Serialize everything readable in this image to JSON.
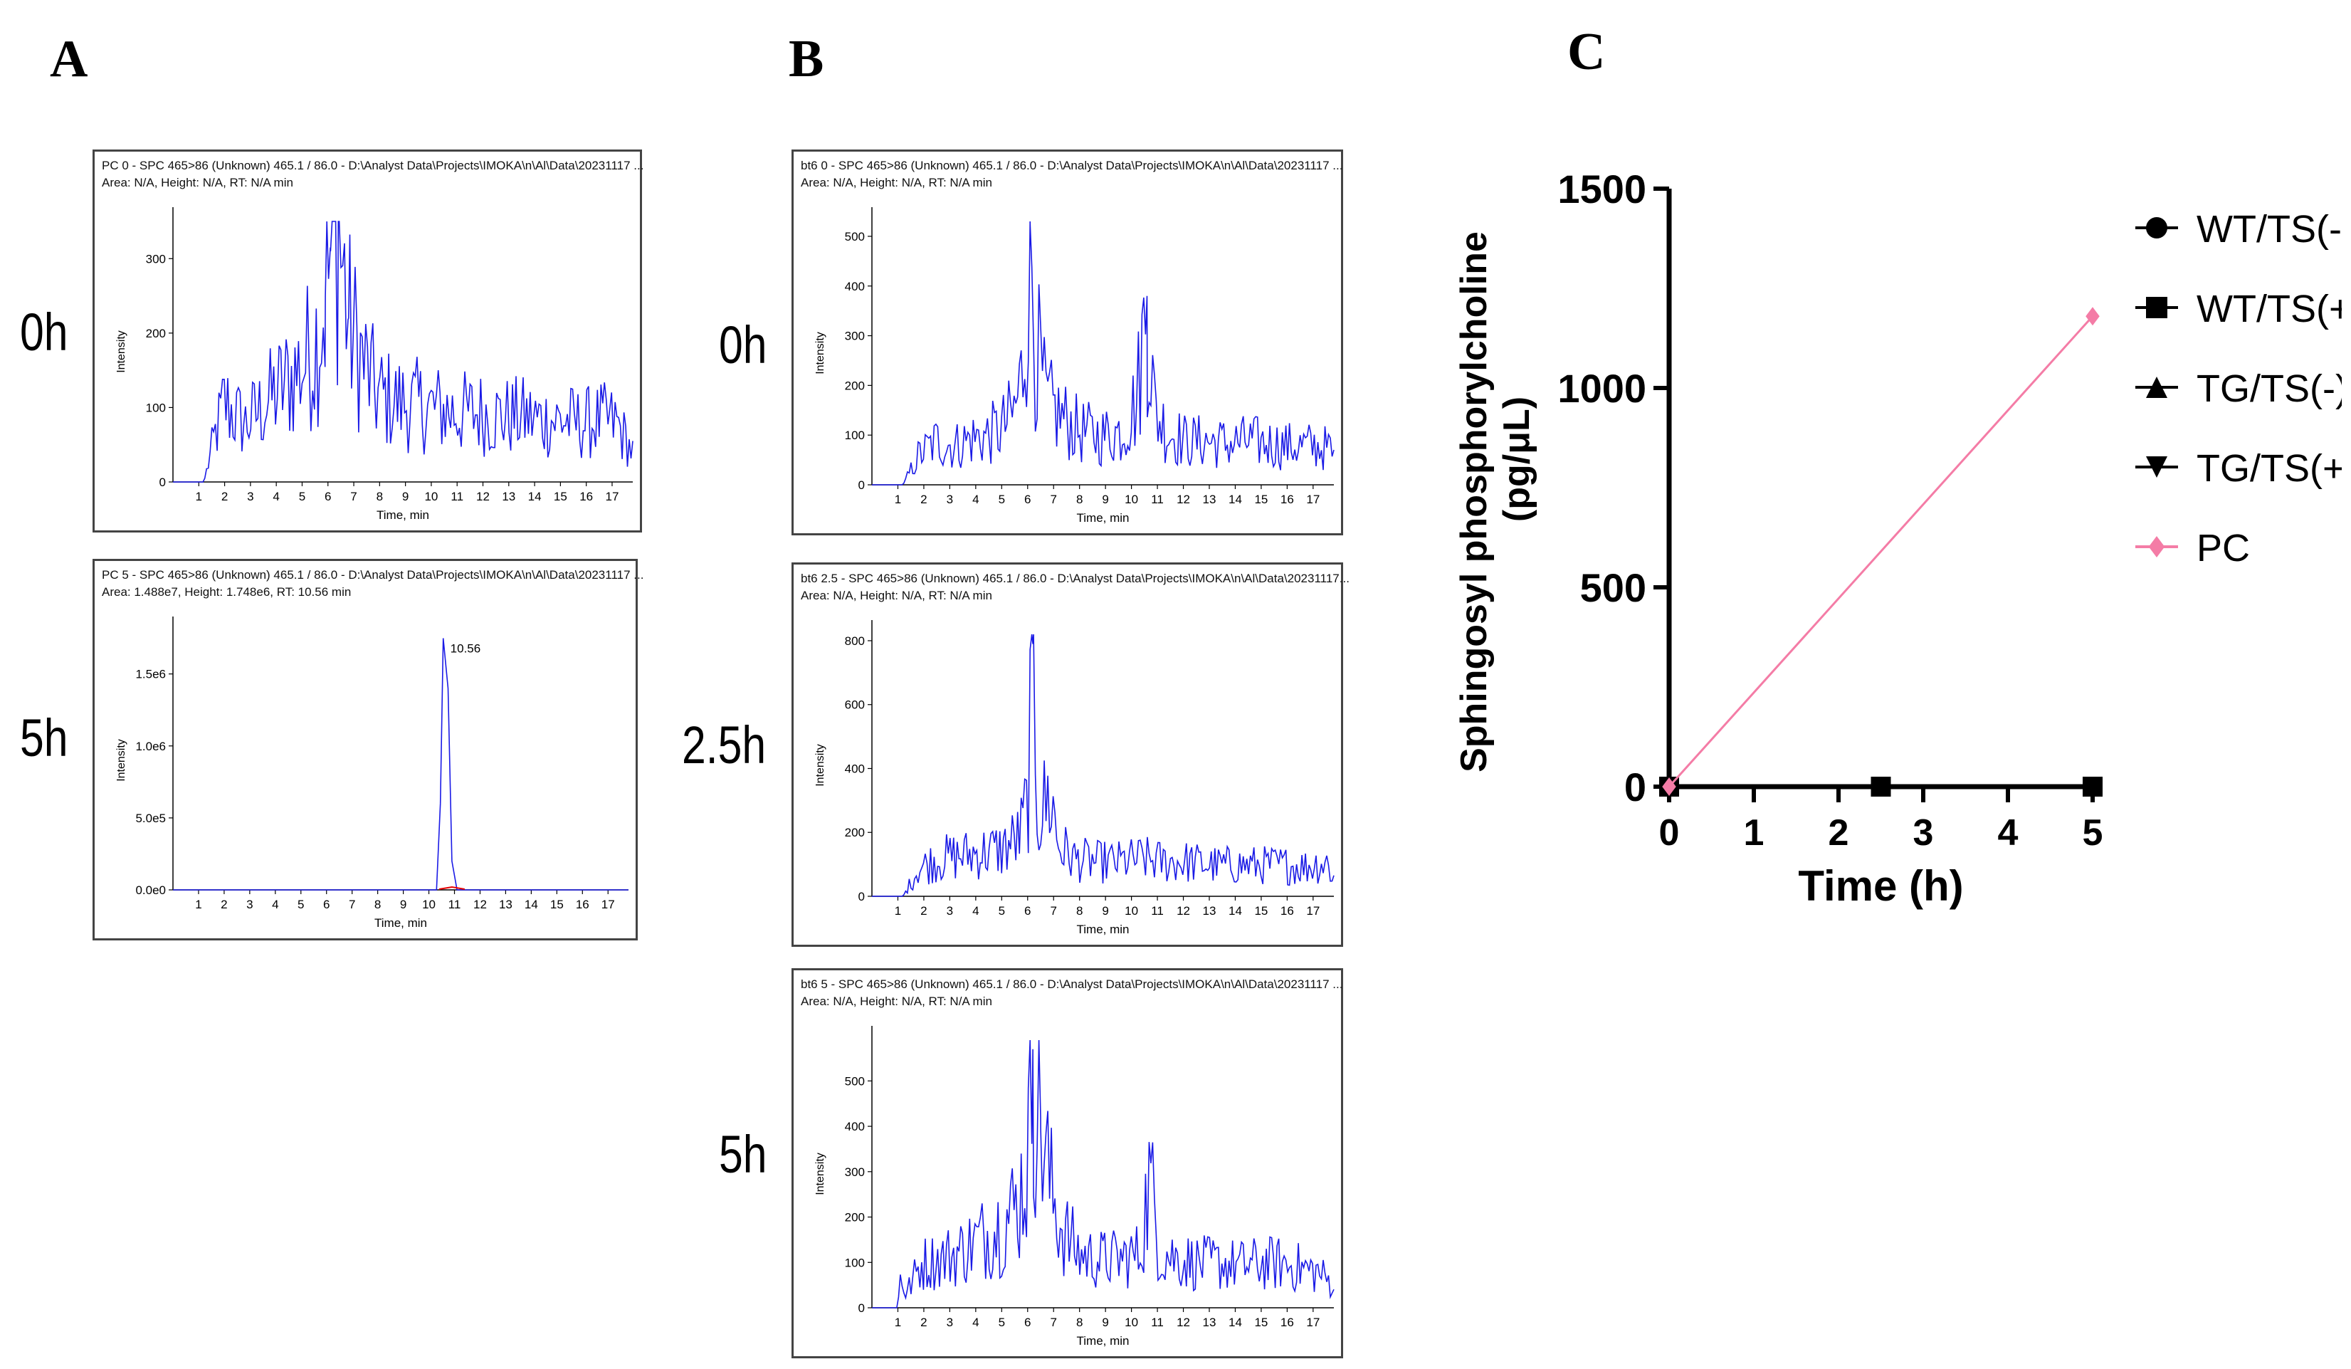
{
  "panels": {
    "A": {
      "letter": "A"
    },
    "B": {
      "letter": "B"
    },
    "C": {
      "letter": "C"
    }
  },
  "colors": {
    "trace": "#1a1ae6",
    "pc": "#f47ca6",
    "axis": "#000000",
    "fit": "#e60000"
  },
  "chromatograms": [
    {
      "id": "A0",
      "time_label": "0h",
      "header": [
        "PC 0 - SPC 465>86 (Unknown) 465.1 / 86.0 - D:\\Analyst Data\\Projects\\IMOKA\\n\\Al\\Data\\20231117 ...",
        "Area: N/A, Height: N/A, RT: N/A min"
      ],
      "y_label": "Intensity",
      "x_label": "Time, min",
      "y_ticks": [
        "0",
        "100",
        "200",
        "300"
      ],
      "y_max": 350,
      "x_ticks": [
        "1",
        "2",
        "3",
        "4",
        "5",
        "6",
        "7",
        "8",
        "9",
        "10",
        "11",
        "12",
        "13",
        "14",
        "15",
        "16",
        "17"
      ],
      "peak_label": ""
    },
    {
      "id": "A5",
      "time_label": "5h",
      "header": [
        "PC 5 - SPC 465>86 (Unknown) 465.1 / 86.0 - D:\\Analyst Data\\Projects\\IMOKA\\n\\Al\\Data\\20231117 ...",
        "Area: 1.488e7, Height: 1.748e6, RT: 10.56 min"
      ],
      "y_label": "Intensity",
      "x_label": "Time, min",
      "y_ticks": [
        "0.0e0",
        "5.0e5",
        "1.0e6",
        "1.5e6"
      ],
      "y_max": 1800000,
      "x_ticks": [
        "1",
        "2",
        "3",
        "4",
        "5",
        "6",
        "7",
        "8",
        "9",
        "10",
        "11",
        "12",
        "13",
        "14",
        "15",
        "16",
        "17"
      ],
      "peak_label": "10.56"
    },
    {
      "id": "B0",
      "time_label": "0h",
      "header": [
        "bt6 0 - SPC 465>86 (Unknown) 465.1 / 86.0 - D:\\Analyst Data\\Projects\\IMOKA\\n\\Al\\Data\\20231117 ...",
        "Area: N/A, Height: N/A, RT: N/A min"
      ],
      "y_label": "Intensity",
      "x_label": "Time, min",
      "y_ticks": [
        "0",
        "100",
        "200",
        "300",
        "400",
        "500"
      ],
      "y_max": 530,
      "x_ticks": [
        "1",
        "2",
        "3",
        "4",
        "5",
        "6",
        "7",
        "8",
        "9",
        "10",
        "11",
        "12",
        "13",
        "14",
        "15",
        "16",
        "17"
      ],
      "peak_label": ""
    },
    {
      "id": "B25",
      "time_label": "2.5h",
      "header": [
        "bt6 2.5 - SPC 465>86 (Unknown) 465.1 / 86.0 - D:\\Analyst Data\\Projects\\IMOKA\\n\\Al\\Data\\20231117...",
        "Area: N/A, Height: N/A, RT: N/A min"
      ],
      "y_label": "Intensity",
      "x_label": "Time, min",
      "y_ticks": [
        "0",
        "200",
        "400",
        "600",
        "800"
      ],
      "y_max": 820,
      "x_ticks": [
        "1",
        "2",
        "3",
        "4",
        "5",
        "6",
        "7",
        "8",
        "9",
        "10",
        "11",
        "12",
        "13",
        "14",
        "15",
        "16",
        "17"
      ],
      "peak_label": ""
    },
    {
      "id": "B5",
      "time_label": "5h",
      "header": [
        "bt6 5 - SPC 465>86 (Unknown) 465.1 / 86.0 - D:\\Analyst Data\\Projects\\IMOKA\\n\\Al\\Data\\20231117 ...",
        "Area: N/A, Height: N/A, RT: N/A min"
      ],
      "y_label": "Intensity",
      "x_label": "Time, min",
      "y_ticks": [
        "0",
        "100",
        "200",
        "300",
        "400",
        "500"
      ],
      "y_max": 590,
      "x_ticks": [
        "1",
        "2",
        "3",
        "4",
        "5",
        "6",
        "7",
        "8",
        "9",
        "10",
        "11",
        "12",
        "13",
        "14",
        "15",
        "16",
        "17"
      ],
      "peak_label": ""
    }
  ],
  "chart_data": [
    {
      "panel": "A",
      "label": "0h",
      "type": "line",
      "xlabel": "Time, min",
      "ylabel": "Intensity",
      "xlim": [
        0,
        17.8
      ],
      "ylim": [
        0,
        350
      ],
      "series": [
        {
          "x": [
            0.5,
            1.2,
            1.3,
            1.6,
            2.0,
            2.3,
            2.8,
            3.4,
            3.9,
            4.5,
            5.0,
            5.5,
            5.9,
            6.1,
            6.4,
            6.8,
            7.3,
            7.9,
            8.6,
            9.5,
            10.3,
            11.0,
            11.9,
            12.7,
            13.5,
            14.3,
            15.1,
            15.8,
            16.6,
            17.2,
            17.8
          ],
          "y": [
            0,
            0,
            15,
            60,
            110,
            95,
            80,
            100,
            120,
            140,
            160,
            190,
            250,
            310,
            350,
            220,
            170,
            120,
            110,
            105,
            100,
            95,
            95,
            90,
            90,
            85,
            85,
            80,
            85,
            80,
            40
          ]
        }
      ]
    },
    {
      "panel": "A",
      "label": "5h",
      "type": "line",
      "xlabel": "Time, min",
      "ylabel": "Intensity",
      "xlim": [
        0,
        17.8
      ],
      "ylim": [
        0,
        1800000
      ],
      "series": [
        {
          "x": [
            0,
            10.3,
            10.45,
            10.56,
            10.75,
            10.9,
            11.1,
            17.8
          ],
          "y": [
            0,
            0,
            600000,
            1748000,
            1400000,
            200000,
            0,
            0
          ]
        }
      ]
    },
    {
      "panel": "B",
      "label": "0h",
      "type": "line",
      "xlabel": "Time, min",
      "ylabel": "Intensity",
      "xlim": [
        0,
        17.8
      ],
      "ylim": [
        0,
        530
      ],
      "series": [
        {
          "x": [
            0.5,
            1.2,
            1.8,
            2.5,
            3.2,
            3.8,
            4.4,
            5.0,
            5.5,
            5.8,
            6.1,
            6.3,
            6.7,
            7.3,
            8.0,
            8.8,
            9.6,
            10.2,
            10.6,
            10.9,
            11.4,
            12.1,
            12.9,
            13.7,
            14.5,
            15.3,
            16.1,
            16.9,
            17.6,
            17.8
          ],
          "y": [
            0,
            0,
            60,
            90,
            80,
            95,
            100,
            115,
            150,
            230,
            520,
            300,
            170,
            140,
            110,
            100,
            110,
            170,
            380,
            150,
            110,
            90,
            90,
            85,
            90,
            85,
            80,
            80,
            75,
            55
          ]
        }
      ]
    },
    {
      "panel": "B",
      "label": "2.5h",
      "type": "line",
      "xlabel": "Time, min",
      "ylabel": "Intensity",
      "xlim": [
        0,
        17.8
      ],
      "ylim": [
        0,
        820
      ],
      "series": [
        {
          "x": [
            0.5,
            1.2,
            1.8,
            2.6,
            3.4,
            4.2,
            5.0,
            5.7,
            6.0,
            6.2,
            6.4,
            6.9,
            7.2,
            7.8,
            8.6,
            9.5,
            10.4,
            11.3,
            12.2,
            13.1,
            14.0,
            14.9,
            15.8,
            16.7,
            17.5,
            17.8
          ],
          "y": [
            0,
            0,
            90,
            120,
            130,
            140,
            150,
            190,
            300,
            790,
            260,
            320,
            160,
            120,
            110,
            110,
            120,
            110,
            110,
            100,
            100,
            100,
            100,
            95,
            110,
            60
          ]
        }
      ]
    },
    {
      "panel": "B",
      "label": "5h",
      "type": "line",
      "xlabel": "Time, min",
      "ylabel": "Intensity",
      "xlim": [
        0,
        17.8
      ],
      "ylim": [
        0,
        590
      ],
      "series": [
        {
          "x": [
            0.5,
            1.0,
            1.1,
            1.3,
            1.9,
            2.7,
            3.5,
            4.3,
            5.0,
            5.6,
            6.0,
            6.2,
            6.5,
            6.9,
            7.4,
            8.0,
            8.7,
            9.5,
            10.3,
            10.7,
            11.1,
            11.8,
            12.6,
            13.4,
            14.2,
            15.0,
            15.8,
            16.5,
            17.2,
            17.8
          ],
          "y": [
            0,
            0,
            80,
            30,
            100,
            110,
            130,
            160,
            190,
            230,
            330,
            570,
            420,
            260,
            170,
            120,
            110,
            110,
            120,
            290,
            130,
            110,
            100,
            100,
            95,
            100,
            100,
            90,
            80,
            50
          ]
        }
      ]
    },
    {
      "panel": "C",
      "type": "line",
      "xlabel": "Time (h)",
      "ylabel": "Sphingosyl phosphorylcholine (pg/μL)",
      "xlim": [
        0,
        5
      ],
      "ylim": [
        0,
        1500
      ],
      "x_ticks": [
        "0",
        "1",
        "2",
        "3",
        "4",
        "5"
      ],
      "y_ticks": [
        "0",
        "500",
        "1000",
        "1500"
      ],
      "legend_position": "right",
      "series": [
        {
          "name": "WT/TS(-)",
          "marker": "circle",
          "color": "#000000",
          "x": [
            0,
            2.5,
            5
          ],
          "y": [
            0,
            0,
            0
          ]
        },
        {
          "name": "WT/TS(+)",
          "marker": "square",
          "color": "#000000",
          "x": [
            0,
            2.5,
            5
          ],
          "y": [
            0,
            0,
            0
          ]
        },
        {
          "name": "TG/TS(-)",
          "marker": "triangle-up",
          "color": "#000000",
          "x": [
            0,
            2.5,
            5
          ],
          "y": [
            0,
            0,
            0
          ]
        },
        {
          "name": "TG/TS(+)",
          "marker": "triangle-down",
          "color": "#000000",
          "x": [
            0,
            2.5,
            5
          ],
          "y": [
            0,
            0,
            0
          ]
        },
        {
          "name": "PC",
          "marker": "diamond",
          "color": "#f47ca6",
          "x": [
            0,
            5
          ],
          "y": [
            0,
            1180
          ]
        }
      ]
    }
  ]
}
